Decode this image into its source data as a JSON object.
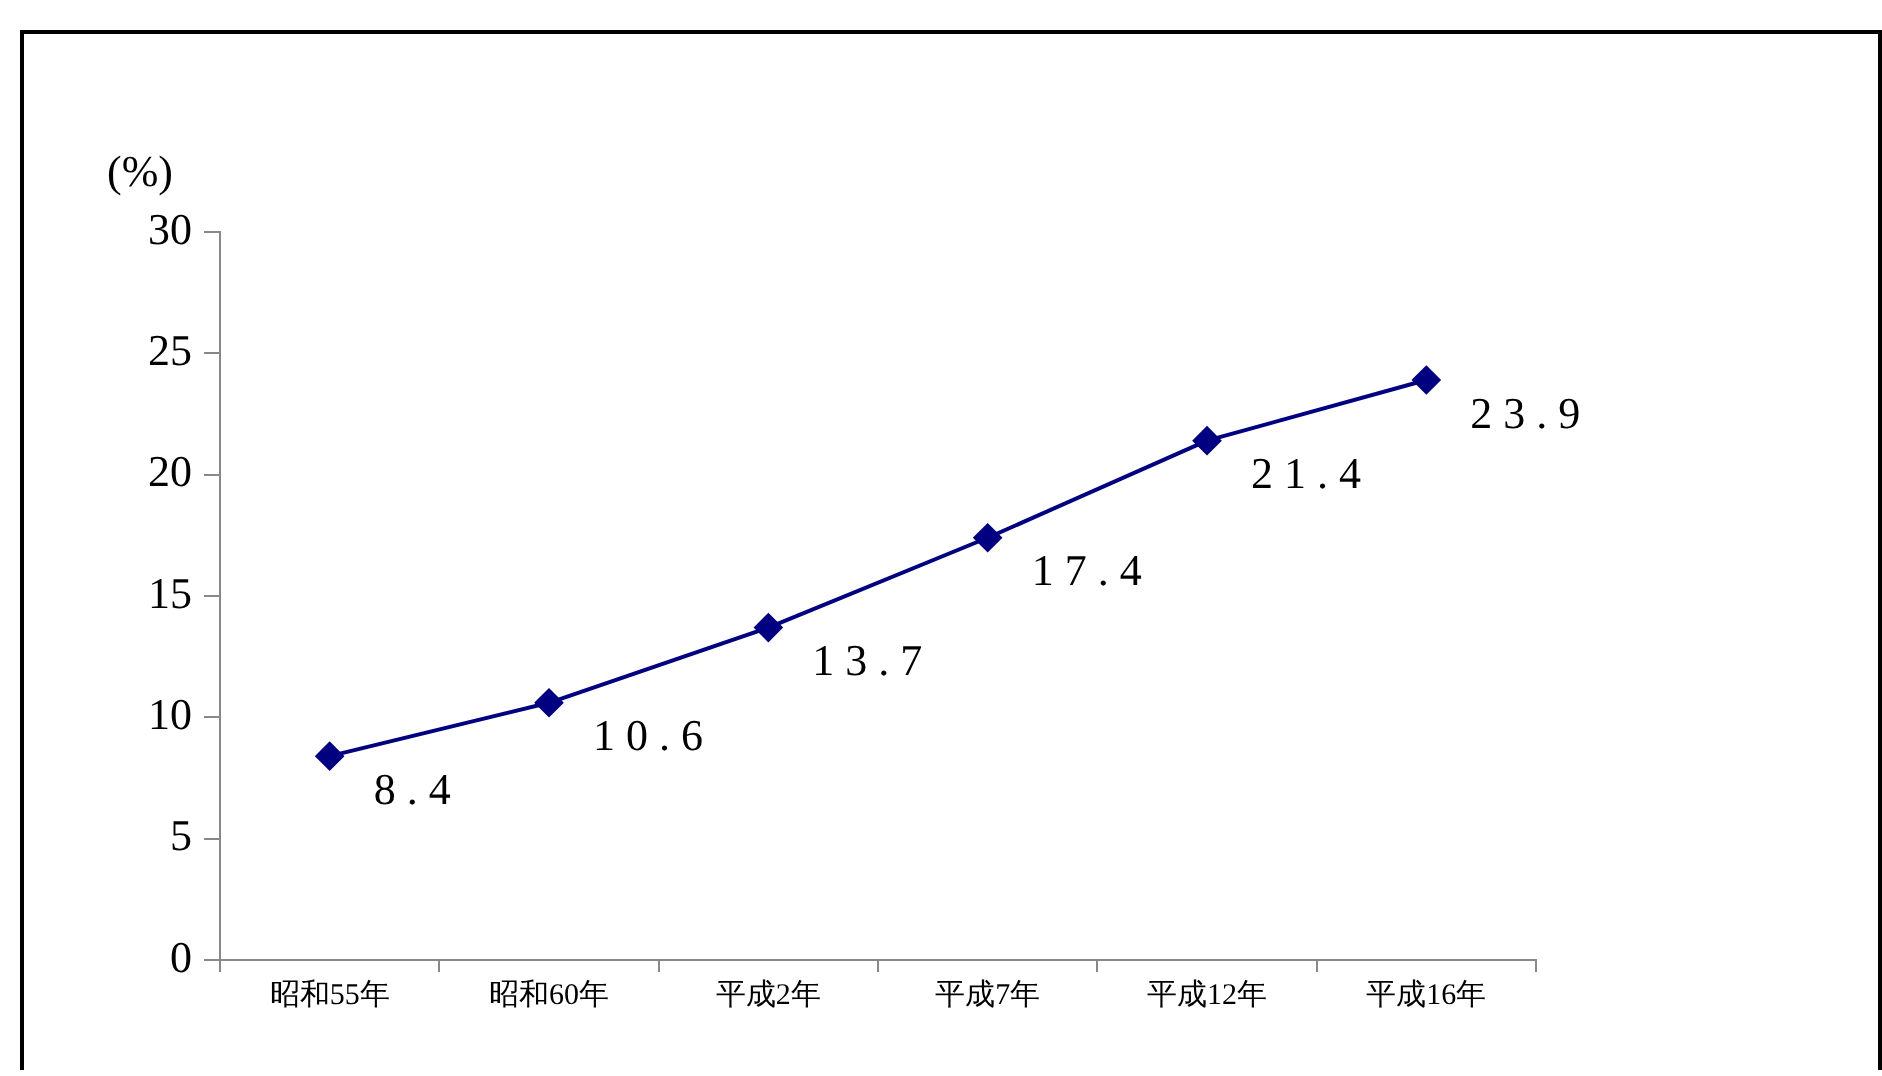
{
  "chart_data": {
    "type": "line",
    "ylabel": "(%)",
    "categories": [
      "昭和55年",
      "昭和60年",
      "平成2年",
      "平成7年",
      "平成12年",
      "平成16年"
    ],
    "series": [
      {
        "color": "#000080",
        "values": [
          8.4,
          10.6,
          13.7,
          17.4,
          21.4,
          23.9
        ]
      }
    ],
    "ylim": [
      0,
      30
    ],
    "yticks": [
      0,
      5,
      10,
      15,
      20,
      25,
      30
    ],
    "grid": false,
    "legend": false,
    "marker": "diamond",
    "line_style": "solid",
    "data_labels": true
  }
}
